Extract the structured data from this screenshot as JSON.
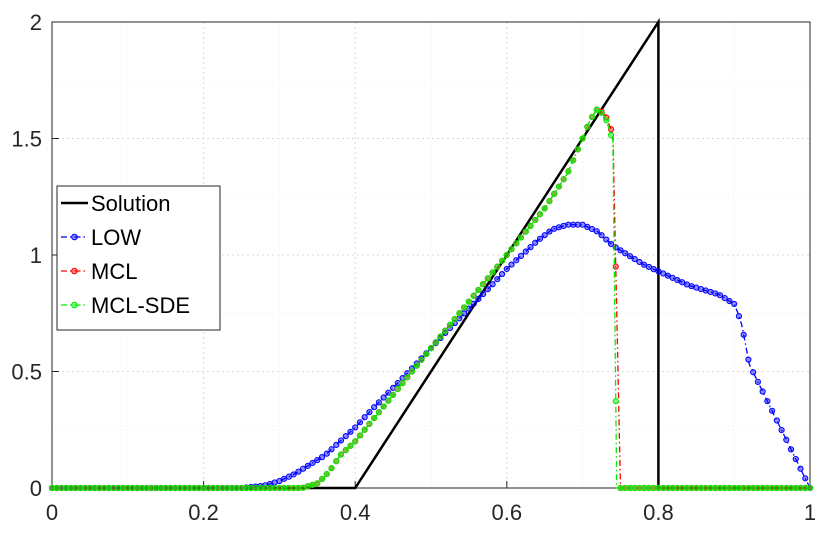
{
  "chart_data": {
    "type": "line",
    "title": "",
    "xlabel": "",
    "ylabel": "",
    "xlim": [
      0,
      1
    ],
    "ylim": [
      0,
      2
    ],
    "grid": true,
    "legend_position": "left",
    "x_ticks": [
      "0",
      "0.2",
      "0.4",
      "0.6",
      "0.8",
      "1"
    ],
    "y_ticks": [
      "0",
      "0.5",
      "1",
      "1.5",
      "2"
    ],
    "series": [
      {
        "name": "Solution",
        "color": "#000000",
        "style": "solid",
        "marker": "none",
        "x": [
          0,
          0.4,
          0.8,
          0.8,
          1
        ],
        "y": [
          0,
          0,
          2,
          0,
          0
        ]
      },
      {
        "name": "LOW",
        "color": "#0000ff",
        "style": "dashdot",
        "marker": "circle",
        "x": [
          0,
          0.25,
          0.28,
          0.3,
          0.32,
          0.34,
          0.36,
          0.38,
          0.4,
          0.42,
          0.45,
          0.48,
          0.5,
          0.52,
          0.55,
          0.58,
          0.6,
          0.62,
          0.64,
          0.66,
          0.68,
          0.7,
          0.72,
          0.74,
          0.76,
          0.78,
          0.8,
          0.82,
          0.84,
          0.86,
          0.88,
          0.9,
          0.905,
          0.91,
          0.92,
          1
        ],
        "y": [
          0,
          0,
          0.01,
          0.03,
          0.06,
          0.1,
          0.14,
          0.2,
          0.26,
          0.33,
          0.43,
          0.53,
          0.6,
          0.67,
          0.77,
          0.87,
          0.94,
          1.0,
          1.06,
          1.11,
          1.13,
          1.13,
          1.1,
          1.04,
          1.0,
          0.96,
          0.93,
          0.9,
          0.87,
          0.85,
          0.83,
          0.79,
          0.75,
          0.7,
          0.53,
          0
        ]
      },
      {
        "name": "MCL",
        "color": "#ff0000",
        "style": "dashdot",
        "marker": "circle",
        "x": [
          0,
          0.33,
          0.35,
          0.36,
          0.37,
          0.38,
          0.4,
          0.42,
          0.45,
          0.48,
          0.5,
          0.52,
          0.55,
          0.58,
          0.6,
          0.62,
          0.65,
          0.68,
          0.7,
          0.71,
          0.72,
          0.73,
          0.74,
          0.75,
          1
        ],
        "y": [
          0,
          0,
          0.02,
          0.05,
          0.09,
          0.14,
          0.2,
          0.28,
          0.4,
          0.52,
          0.6,
          0.68,
          0.8,
          0.92,
          1.0,
          1.08,
          1.2,
          1.35,
          1.5,
          1.58,
          1.63,
          1.6,
          1.52,
          0,
          0
        ]
      },
      {
        "name": "MCL-SDE",
        "color": "#00ee00",
        "style": "dashdot",
        "marker": "circle",
        "x": [
          0,
          0.33,
          0.35,
          0.36,
          0.37,
          0.38,
          0.4,
          0.42,
          0.45,
          0.48,
          0.5,
          0.52,
          0.55,
          0.58,
          0.6,
          0.62,
          0.65,
          0.68,
          0.7,
          0.71,
          0.72,
          0.73,
          0.74,
          0.745,
          1
        ],
        "y": [
          0,
          0,
          0.02,
          0.05,
          0.09,
          0.14,
          0.2,
          0.28,
          0.4,
          0.52,
          0.6,
          0.68,
          0.8,
          0.92,
          1.0,
          1.08,
          1.2,
          1.35,
          1.5,
          1.58,
          1.63,
          1.59,
          1.49,
          0,
          0
        ]
      }
    ]
  }
}
